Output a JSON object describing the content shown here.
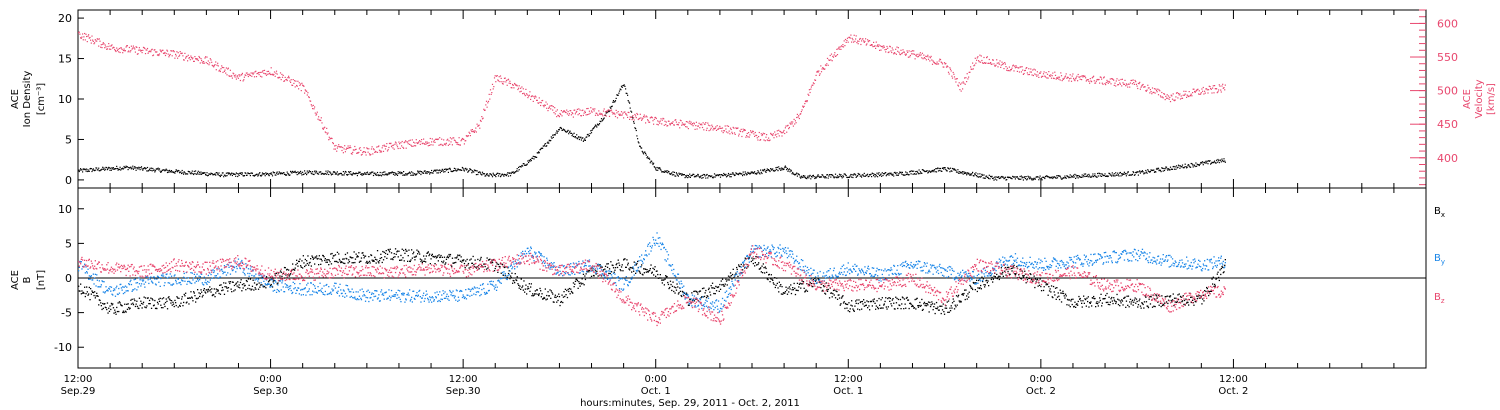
{
  "colors": {
    "black": "#000000",
    "pink": "#e8476e",
    "blue": "#1a86e8"
  },
  "chart_data": [
    {
      "type": "scatter",
      "panel": "density-velocity",
      "left_axis": {
        "label": [
          "ACE",
          "Ion Density",
          "[cm⁻³]"
        ],
        "ylim": [
          -1,
          21
        ],
        "ticks": [
          0,
          5,
          10,
          15,
          20
        ]
      },
      "right_axis": {
        "label": [
          "ACE",
          "Velocity",
          "[km/s]"
        ],
        "ylim": [
          355,
          620
        ],
        "ticks": [
          400,
          450,
          500,
          550,
          600
        ]
      },
      "xlim": [
        "2011-09-29 12:00",
        "2011-10-03 00:00"
      ],
      "series": [
        {
          "axis": "left",
          "color": "#000000",
          "x": [
            "2011-09-29 12:00",
            "2011-09-29 15:00",
            "2011-09-29 18:00",
            "2011-09-29 21:00",
            "2011-09-30 00:00",
            "2011-09-30 03:00",
            "2011-09-30 06:00",
            "2011-09-30 09:00",
            "2011-09-30 12:00",
            "2011-09-30 13:30",
            "2011-09-30 15:00",
            "2011-09-30 16:30",
            "2011-09-30 18:00",
            "2011-09-30 19:30",
            "2011-09-30 21:00",
            "2011-09-30 22:00",
            "2011-09-30 23:00",
            "2011-10-01 00:00",
            "2011-10-01 01:30",
            "2011-10-01 03:00",
            "2011-10-01 06:00",
            "2011-10-01 08:00",
            "2011-10-01 09:00",
            "2011-10-01 12:00",
            "2011-10-01 15:00",
            "2011-10-01 18:00",
            "2011-10-01 21:00",
            "2011-10-02 00:00",
            "2011-10-02 03:00",
            "2011-10-02 06:00",
            "2011-10-02 09:00",
            "2011-10-02 11:30"
          ],
          "y": [
            1.2,
            1.6,
            1.1,
            0.7,
            0.8,
            1.0,
            0.8,
            0.9,
            1.4,
            0.6,
            0.8,
            3.0,
            6.5,
            5.0,
            8.5,
            12.0,
            4.0,
            1.5,
            0.6,
            0.5,
            0.9,
            1.6,
            0.4,
            0.6,
            0.8,
            1.4,
            0.3,
            0.3,
            0.6,
            0.9,
            1.8,
            2.5
          ]
        },
        {
          "axis": "right",
          "color": "#e8476e",
          "x": [
            "2011-09-29 12:00",
            "2011-09-29 14:00",
            "2011-09-29 16:00",
            "2011-09-29 18:00",
            "2011-09-29 20:00",
            "2011-09-29 22:00",
            "2011-09-30 00:00",
            "2011-09-30 02:00",
            "2011-09-30 04:00",
            "2011-09-30 06:00",
            "2011-09-30 08:00",
            "2011-09-30 10:00",
            "2011-09-30 12:00",
            "2011-09-30 13:00",
            "2011-09-30 14:00",
            "2011-09-30 15:00",
            "2011-09-30 16:00",
            "2011-09-30 18:00",
            "2011-09-30 20:00",
            "2011-09-30 22:00",
            "2011-10-01 00:00",
            "2011-10-01 02:00",
            "2011-10-01 04:00",
            "2011-10-01 06:00",
            "2011-10-01 07:00",
            "2011-10-01 08:00",
            "2011-10-01 09:00",
            "2011-10-01 10:00",
            "2011-10-01 12:00",
            "2011-10-01 14:00",
            "2011-10-01 16:00",
            "2011-10-01 18:00",
            "2011-10-01 19:00",
            "2011-10-01 20:00",
            "2011-10-01 22:00",
            "2011-10-02 00:00",
            "2011-10-02 02:00",
            "2011-10-02 04:00",
            "2011-10-02 06:00",
            "2011-10-02 08:00",
            "2011-10-02 10:00",
            "2011-10-02 11:30"
          ],
          "y": [
            585,
            565,
            560,
            555,
            545,
            520,
            530,
            505,
            415,
            410,
            420,
            425,
            425,
            450,
            520,
            510,
            495,
            465,
            470,
            465,
            455,
            450,
            445,
            435,
            430,
            440,
            465,
            525,
            580,
            565,
            555,
            540,
            505,
            550,
            535,
            525,
            520,
            515,
            510,
            490,
            500,
            505
          ]
        }
      ]
    },
    {
      "type": "scatter",
      "panel": "magnetic-field",
      "left_axis": {
        "label": [
          "ACE",
          "B",
          "[nT]"
        ],
        "ylim": [
          -13,
          13
        ],
        "ticks": [
          -10,
          -5,
          0,
          5,
          10
        ]
      },
      "xlim": [
        "2011-09-29 12:00",
        "2011-10-03 00:00"
      ],
      "legend": {
        "placement": "right",
        "entries": [
          "Bx",
          "By",
          "Bz"
        ]
      },
      "series": [
        {
          "name": "Bx",
          "color": "#000000",
          "x": [
            "2011-09-29 12:00",
            "2011-09-29 14:00",
            "2011-09-29 16:00",
            "2011-09-29 18:00",
            "2011-09-29 20:00",
            "2011-09-29 22:00",
            "2011-09-30 00:00",
            "2011-09-30 02:00",
            "2011-09-30 04:00",
            "2011-09-30 06:00",
            "2011-09-30 08:00",
            "2011-09-30 10:00",
            "2011-09-30 12:00",
            "2011-09-30 14:00",
            "2011-09-30 16:00",
            "2011-09-30 18:00",
            "2011-09-30 20:00",
            "2011-09-30 22:00",
            "2011-10-01 00:00",
            "2011-10-01 02:00",
            "2011-10-01 04:00",
            "2011-10-01 06:00",
            "2011-10-01 08:00",
            "2011-10-01 10:00",
            "2011-10-01 12:00",
            "2011-10-01 14:00",
            "2011-10-01 16:00",
            "2011-10-01 18:00",
            "2011-10-01 20:00",
            "2011-10-01 22:00",
            "2011-10-02 00:00",
            "2011-10-02 02:00",
            "2011-10-02 04:00",
            "2011-10-02 06:00",
            "2011-10-02 08:00",
            "2011-10-02 10:00",
            "2011-10-02 11:30"
          ],
          "y": [
            -1,
            -4.5,
            -3.5,
            -3.5,
            -2,
            -1,
            -0.5,
            2.5,
            3,
            3,
            3.5,
            3,
            2.5,
            2,
            -1.5,
            -3,
            1,
            2,
            1,
            -3,
            -1,
            3,
            -2,
            -0.5,
            -4,
            -3.5,
            -3.5,
            -4.5,
            -1,
            1.5,
            -1,
            -3.5,
            -3,
            -3.5,
            -3,
            -3,
            2
          ]
        },
        {
          "name": "By",
          "color": "#1a86e8",
          "x": [
            "2011-09-29 12:00",
            "2011-09-29 14:00",
            "2011-09-29 16:00",
            "2011-09-29 18:00",
            "2011-09-29 20:00",
            "2011-09-29 22:00",
            "2011-09-30 00:00",
            "2011-09-30 02:00",
            "2011-09-30 04:00",
            "2011-09-30 06:00",
            "2011-09-30 08:00",
            "2011-09-30 10:00",
            "2011-09-30 12:00",
            "2011-09-30 14:00",
            "2011-09-30 16:00",
            "2011-09-30 18:00",
            "2011-09-30 20:00",
            "2011-09-30 22:00",
            "2011-10-01 00:00",
            "2011-10-01 02:00",
            "2011-10-01 04:00",
            "2011-10-01 06:00",
            "2011-10-01 08:00",
            "2011-10-01 10:00",
            "2011-10-01 12:00",
            "2011-10-01 14:00",
            "2011-10-01 16:00",
            "2011-10-01 18:00",
            "2011-10-01 20:00",
            "2011-10-01 22:00",
            "2011-10-02 00:00",
            "2011-10-02 02:00",
            "2011-10-02 04:00",
            "2011-10-02 06:00",
            "2011-10-02 08:00",
            "2011-10-02 10:00",
            "2011-10-02 11:30"
          ],
          "y": [
            2,
            -2,
            -0.5,
            0,
            0,
            2,
            -1,
            -1.5,
            -1.5,
            -2.5,
            -2.5,
            -2.5,
            -2.5,
            -1,
            4,
            1,
            2,
            -1,
            6,
            -3,
            -4,
            4,
            4,
            0,
            1.5,
            0.5,
            2,
            1,
            0,
            3,
            2,
            2.5,
            3,
            3.5,
            2.5,
            2,
            2.5
          ]
        },
        {
          "name": "Bz",
          "color": "#e8476e",
          "x": [
            "2011-09-29 12:00",
            "2011-09-29 14:00",
            "2011-09-29 16:00",
            "2011-09-29 18:00",
            "2011-09-29 20:00",
            "2011-09-29 22:00",
            "2011-09-30 00:00",
            "2011-09-30 02:00",
            "2011-09-30 04:00",
            "2011-09-30 06:00",
            "2011-09-30 08:00",
            "2011-09-30 10:00",
            "2011-09-30 12:00",
            "2011-09-30 14:00",
            "2011-09-30 16:00",
            "2011-09-30 18:00",
            "2011-09-30 20:00",
            "2011-09-30 22:00",
            "2011-10-01 00:00",
            "2011-10-01 02:00",
            "2011-10-01 04:00",
            "2011-10-01 06:00",
            "2011-10-01 08:00",
            "2011-10-01 10:00",
            "2011-10-01 12:00",
            "2011-10-01 14:00",
            "2011-10-01 16:00",
            "2011-10-01 18:00",
            "2011-10-01 20:00",
            "2011-10-01 22:00",
            "2011-10-02 00:00",
            "2011-10-02 02:00",
            "2011-10-02 04:00",
            "2011-10-02 06:00",
            "2011-10-02 08:00",
            "2011-10-02 10:00",
            "2011-10-02 11:30"
          ],
          "y": [
            2.5,
            1.5,
            1,
            2,
            1.5,
            2.5,
            0.5,
            0.5,
            1,
            1,
            1,
            1.5,
            1,
            2,
            3,
            1,
            2,
            -3,
            -6,
            -3,
            -6,
            4,
            2,
            -1,
            -1,
            -1,
            0,
            -3,
            2,
            1,
            0,
            1,
            -1,
            -1,
            -4,
            -2,
            -2
          ]
        }
      ]
    }
  ],
  "x_ticks": [
    {
      "time": "2011-09-29 12:00",
      "line1": "12:00",
      "line2": "Sep.29"
    },
    {
      "time": "2011-09-30 00:00",
      "line1": "0:00",
      "line2": "Sep.30"
    },
    {
      "time": "2011-09-30 12:00",
      "line1": "12:00",
      "line2": "Sep.30"
    },
    {
      "time": "2011-10-01 00:00",
      "line1": "0:00",
      "line2": "Oct. 1"
    },
    {
      "time": "2011-10-01 12:00",
      "line1": "12:00",
      "line2": "Oct. 1"
    },
    {
      "time": "2011-10-02 00:00",
      "line1": "0:00",
      "line2": "Oct. 2"
    },
    {
      "time": "2011-10-02 12:00",
      "line1": "12:00",
      "line2": "Oct. 2"
    }
  ],
  "xlabel": "hours:minutes, Sep. 29, 2011 - Oct.  2, 2011"
}
